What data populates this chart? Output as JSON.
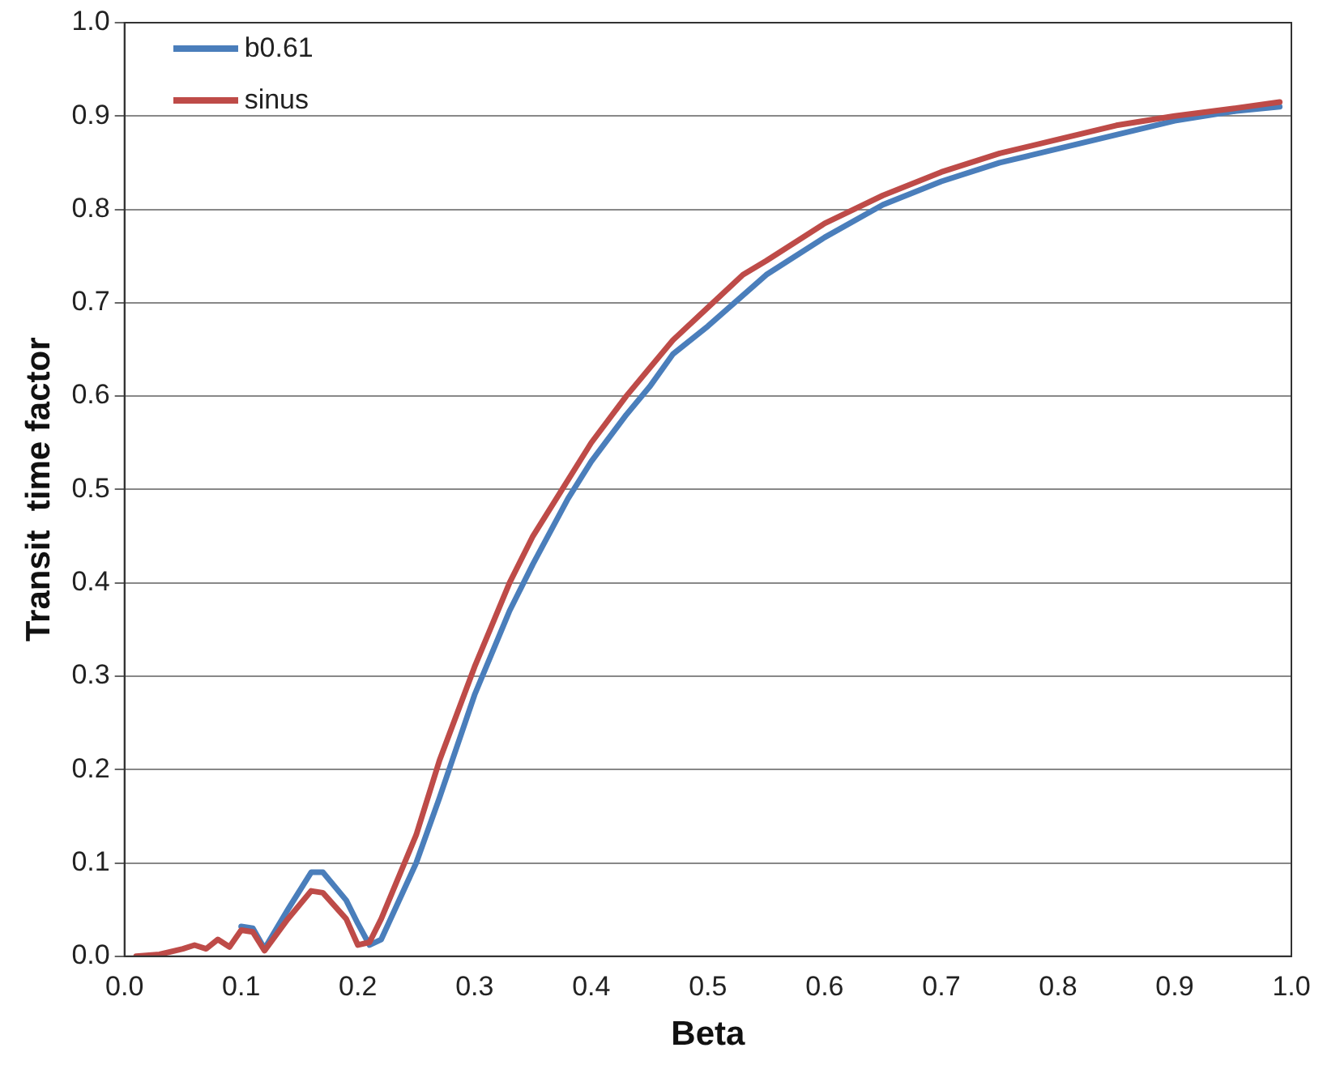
{
  "chart_data": {
    "type": "line",
    "xlabel": "Beta",
    "ylabel": "Transit  time factor",
    "xlim": [
      0,
      1
    ],
    "ylim": [
      0,
      1
    ],
    "xticks": [
      {
        "value": 0,
        "label": "0.0"
      },
      {
        "value": 0.1,
        "label": "0.1"
      },
      {
        "value": 0.2,
        "label": "0.2"
      },
      {
        "value": 0.3,
        "label": "0.3"
      },
      {
        "value": 0.4,
        "label": "0.4"
      },
      {
        "value": 0.5,
        "label": "0.5"
      },
      {
        "value": 0.6,
        "label": "0.6"
      },
      {
        "value": 0.7,
        "label": "0.7"
      },
      {
        "value": 0.8,
        "label": "0.8"
      },
      {
        "value": 0.9,
        "label": "0.9"
      },
      {
        "value": 1,
        "label": "1.0"
      }
    ],
    "yticks": [
      {
        "value": 0,
        "label": "0.0"
      },
      {
        "value": 0.1,
        "label": "0.1"
      },
      {
        "value": 0.2,
        "label": "0.2"
      },
      {
        "value": 0.3,
        "label": "0.3"
      },
      {
        "value": 0.4,
        "label": "0.4"
      },
      {
        "value": 0.5,
        "label": "0.5"
      },
      {
        "value": 0.6,
        "label": "0.6"
      },
      {
        "value": 0.7,
        "label": "0.7"
      },
      {
        "value": 0.8,
        "label": "0.8"
      },
      {
        "value": 0.9,
        "label": "0.9"
      },
      {
        "value": 1,
        "label": "1.0"
      }
    ],
    "grid": "y",
    "legend": "top left",
    "marker": "none",
    "line_style": "solid",
    "series": [
      {
        "name": "b0.61",
        "color": "#4a7ebb",
        "x": [
          0.1,
          0.11,
          0.12,
          0.14,
          0.16,
          0.17,
          0.19,
          0.2,
          0.21,
          0.22,
          0.25,
          0.27,
          0.3,
          0.33,
          0.35,
          0.38,
          0.4,
          0.43,
          0.45,
          0.47,
          0.5,
          0.55,
          0.6,
          0.65,
          0.7,
          0.75,
          0.8,
          0.85,
          0.9,
          0.95,
          0.99
        ],
        "values": [
          0.032,
          0.03,
          0.008,
          0.05,
          0.09,
          0.09,
          0.06,
          0.035,
          0.012,
          0.018,
          0.1,
          0.17,
          0.28,
          0.37,
          0.42,
          0.49,
          0.53,
          0.58,
          0.61,
          0.645,
          0.675,
          0.73,
          0.77,
          0.805,
          0.83,
          0.85,
          0.865,
          0.88,
          0.895,
          0.905,
          0.91
        ]
      },
      {
        "name": "sinus",
        "color": "#be4b48",
        "x": [
          0.01,
          0.03,
          0.05,
          0.06,
          0.07,
          0.08,
          0.09,
          0.1,
          0.11,
          0.12,
          0.14,
          0.16,
          0.17,
          0.19,
          0.2,
          0.21,
          0.22,
          0.25,
          0.27,
          0.3,
          0.33,
          0.35,
          0.38,
          0.4,
          0.43,
          0.45,
          0.47,
          0.5,
          0.53,
          0.55,
          0.6,
          0.65,
          0.7,
          0.75,
          0.8,
          0.85,
          0.9,
          0.95,
          0.99
        ],
        "values": [
          0,
          0.002,
          0.008,
          0.012,
          0.008,
          0.018,
          0.01,
          0.028,
          0.026,
          0.006,
          0.04,
          0.07,
          0.068,
          0.04,
          0.012,
          0.015,
          0.04,
          0.13,
          0.21,
          0.31,
          0.4,
          0.45,
          0.51,
          0.55,
          0.6,
          0.63,
          0.66,
          0.695,
          0.73,
          0.745,
          0.785,
          0.815,
          0.84,
          0.86,
          0.875,
          0.89,
          0.9,
          0.908,
          0.915
        ]
      }
    ]
  }
}
